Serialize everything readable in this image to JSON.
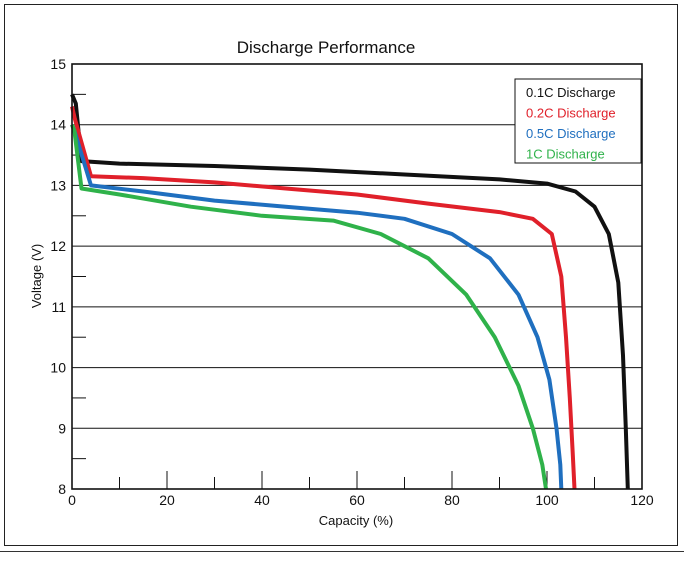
{
  "chart_data": {
    "type": "line",
    "title": "Discharge Performance",
    "xlabel": "Capacity (%)",
    "ylabel": "Voltage (V)",
    "xlim": [
      0,
      120
    ],
    "ylim": [
      8,
      15
    ],
    "x_ticks": [
      0,
      20,
      40,
      60,
      80,
      100,
      120
    ],
    "y_ticks": [
      8,
      9,
      10,
      11,
      12,
      13,
      14,
      15
    ],
    "grid": "horizontal",
    "legend_position": "top-right",
    "series": [
      {
        "name": "0.1C Discharge",
        "color": "#111111",
        "points": [
          [
            0,
            14.5
          ],
          [
            0.8,
            14.35
          ],
          [
            2,
            13.4
          ],
          [
            10,
            13.36
          ],
          [
            30,
            13.32
          ],
          [
            50,
            13.26
          ],
          [
            70,
            13.18
          ],
          [
            90,
            13.1
          ],
          [
            100,
            13.03
          ],
          [
            106,
            12.9
          ],
          [
            110,
            12.65
          ],
          [
            113,
            12.2
          ],
          [
            115,
            11.4
          ],
          [
            116,
            10.2
          ],
          [
            116.6,
            9.0
          ],
          [
            117,
            8.0
          ]
        ]
      },
      {
        "name": "0.2C Discharge",
        "color": "#e0202a",
        "points": [
          [
            0,
            14.3
          ],
          [
            0.6,
            14.1
          ],
          [
            4,
            13.15
          ],
          [
            15,
            13.12
          ],
          [
            30,
            13.05
          ],
          [
            45,
            12.95
          ],
          [
            60,
            12.85
          ],
          [
            75,
            12.7
          ],
          [
            90,
            12.56
          ],
          [
            97,
            12.45
          ],
          [
            101,
            12.2
          ],
          [
            103,
            11.5
          ],
          [
            104,
            10.5
          ],
          [
            104.8,
            9.5
          ],
          [
            105.4,
            8.6
          ],
          [
            105.8,
            8.0
          ]
        ]
      },
      {
        "name": "0.5C Discharge",
        "color": "#1f6fbf",
        "points": [
          [
            0,
            14.0
          ],
          [
            0.5,
            13.9
          ],
          [
            4,
            13.0
          ],
          [
            15,
            12.9
          ],
          [
            30,
            12.75
          ],
          [
            45,
            12.65
          ],
          [
            60,
            12.55
          ],
          [
            70,
            12.45
          ],
          [
            80,
            12.2
          ],
          [
            88,
            11.8
          ],
          [
            94,
            11.2
          ],
          [
            98,
            10.5
          ],
          [
            100.5,
            9.8
          ],
          [
            102,
            9.0
          ],
          [
            102.8,
            8.4
          ],
          [
            103,
            8.0
          ]
        ]
      },
      {
        "name": "1C Discharge",
        "color": "#2fb24a",
        "points": [
          [
            0,
            14.0
          ],
          [
            0.5,
            13.9
          ],
          [
            2,
            12.95
          ],
          [
            10,
            12.85
          ],
          [
            25,
            12.65
          ],
          [
            40,
            12.5
          ],
          [
            55,
            12.42
          ],
          [
            65,
            12.2
          ],
          [
            75,
            11.8
          ],
          [
            83,
            11.2
          ],
          [
            89,
            10.5
          ],
          [
            94,
            9.7
          ],
          [
            97,
            9.0
          ],
          [
            99,
            8.4
          ],
          [
            99.8,
            8.0
          ]
        ]
      }
    ]
  }
}
